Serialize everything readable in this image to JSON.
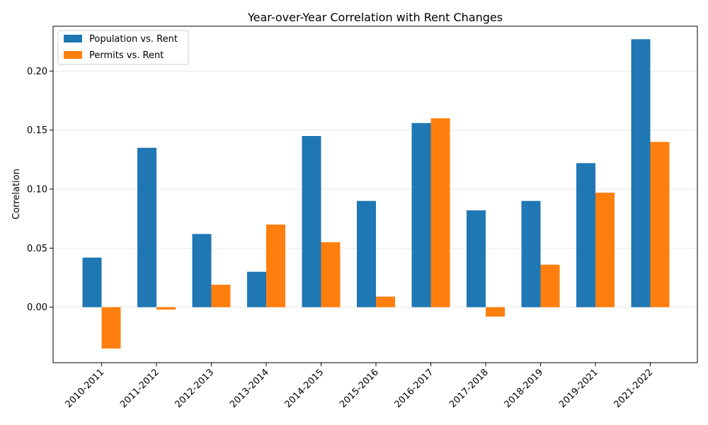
{
  "chart_data": {
    "type": "bar",
    "title": "Year-over-Year Correlation with Rent Changes",
    "xlabel": "",
    "ylabel": "Correlation",
    "categories": [
      "2010-2011",
      "2011-2012",
      "2012-2013",
      "2013-2014",
      "2014-2015",
      "2015-2016",
      "2016-2017",
      "2017-2018",
      "2018-2019",
      "2019-2021",
      "2021-2022"
    ],
    "series": [
      {
        "name": "Population vs. Rent",
        "color": "#1f77b4",
        "values": [
          0.042,
          0.135,
          0.062,
          0.03,
          0.145,
          0.09,
          0.156,
          0.082,
          0.09,
          0.122,
          0.227
        ]
      },
      {
        "name": "Permits vs. Rent",
        "color": "#ff7f0e",
        "values": [
          -0.035,
          -0.002,
          0.019,
          0.07,
          0.055,
          0.009,
          0.16,
          -0.008,
          0.036,
          0.097,
          0.14
        ]
      }
    ],
    "ylim": [
      -0.047,
      0.238
    ],
    "yticks": [
      0.0,
      0.05,
      0.1,
      0.15,
      0.2
    ],
    "ytick_labels": [
      "0.00",
      "0.05",
      "0.10",
      "0.15",
      "0.20"
    ],
    "grid": "y",
    "legend_position": "top-left"
  }
}
